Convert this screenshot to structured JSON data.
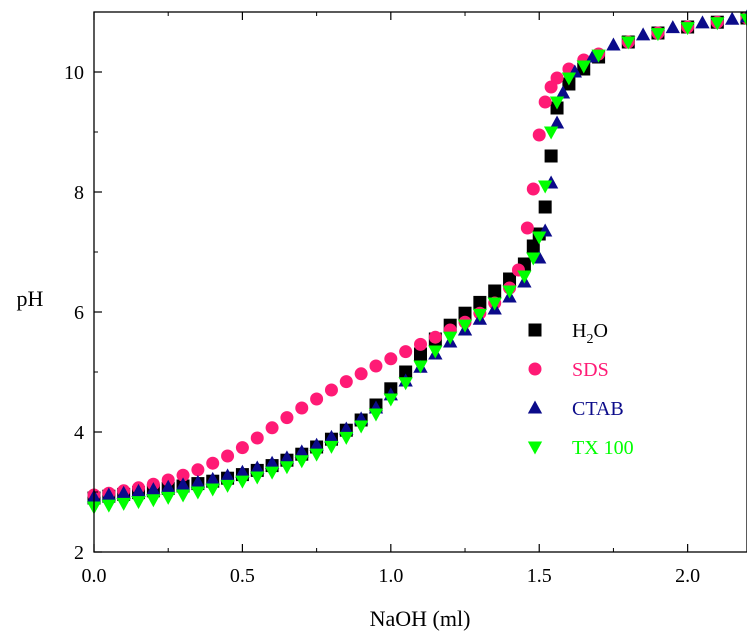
{
  "chart_data": {
    "type": "scatter",
    "xlabel": "NaOH (ml)",
    "ylabel": "pH",
    "xlim": [
      0,
      2.2
    ],
    "ylim": [
      2,
      11
    ],
    "xticks": [
      0.0,
      0.5,
      1.0,
      1.5,
      2.0
    ],
    "xtick_labels": [
      "0.0",
      "0.5",
      "1.0",
      "1.5",
      "2.0"
    ],
    "yticks": [
      2,
      4,
      6,
      8,
      10
    ],
    "ytick_labels": [
      "2",
      "4",
      "6",
      "8",
      "10"
    ],
    "grid": false,
    "legend_position": "right",
    "series": [
      {
        "name": "H2O",
        "label_main": "H",
        "label_sub": "2",
        "label_tail": "O",
        "marker": "square",
        "color": "#000000",
        "x": [
          0.0,
          0.05,
          0.1,
          0.15,
          0.2,
          0.25,
          0.3,
          0.35,
          0.4,
          0.45,
          0.5,
          0.55,
          0.6,
          0.65,
          0.7,
          0.75,
          0.8,
          0.85,
          0.9,
          0.95,
          1.0,
          1.05,
          1.1,
          1.15,
          1.2,
          1.25,
          1.3,
          1.35,
          1.4,
          1.45,
          1.48,
          1.5,
          1.52,
          1.54,
          1.56,
          1.6,
          1.65,
          1.7,
          1.8,
          1.9,
          2.0,
          2.1,
          2.2
        ],
        "y": [
          2.9,
          2.93,
          2.96,
          2.99,
          3.02,
          3.06,
          3.1,
          3.14,
          3.18,
          3.23,
          3.29,
          3.36,
          3.44,
          3.53,
          3.63,
          3.75,
          3.88,
          4.03,
          4.2,
          4.45,
          4.72,
          5.0,
          5.3,
          5.55,
          5.78,
          5.98,
          6.16,
          6.35,
          6.55,
          6.8,
          7.1,
          7.3,
          7.75,
          8.6,
          9.4,
          9.8,
          10.05,
          10.25,
          10.5,
          10.65,
          10.75,
          10.83,
          10.9
        ]
      },
      {
        "name": "SDS",
        "marker": "circle",
        "color": "#ff1a75",
        "x": [
          0.0,
          0.05,
          0.1,
          0.15,
          0.2,
          0.25,
          0.3,
          0.35,
          0.4,
          0.45,
          0.5,
          0.55,
          0.6,
          0.65,
          0.7,
          0.75,
          0.8,
          0.85,
          0.9,
          0.95,
          1.0,
          1.05,
          1.1,
          1.15,
          1.2,
          1.25,
          1.3,
          1.35,
          1.4,
          1.43,
          1.46,
          1.48,
          1.5,
          1.52,
          1.54,
          1.56,
          1.6,
          1.65,
          1.7,
          1.8,
          1.9,
          2.0,
          2.1,
          2.2
        ],
        "y": [
          2.95,
          2.98,
          3.02,
          3.07,
          3.13,
          3.2,
          3.28,
          3.37,
          3.48,
          3.6,
          3.74,
          3.9,
          4.07,
          4.24,
          4.4,
          4.55,
          4.7,
          4.84,
          4.97,
          5.1,
          5.22,
          5.34,
          5.46,
          5.58,
          5.7,
          5.83,
          5.98,
          6.15,
          6.4,
          6.7,
          7.4,
          8.05,
          8.95,
          9.5,
          9.75,
          9.9,
          10.05,
          10.2,
          10.3,
          10.5,
          10.65,
          10.75,
          10.83,
          10.9
        ]
      },
      {
        "name": "CTAB",
        "marker": "triangle-up",
        "color": "#0b0b8a",
        "x": [
          0.0,
          0.05,
          0.1,
          0.15,
          0.2,
          0.25,
          0.3,
          0.35,
          0.4,
          0.45,
          0.5,
          0.55,
          0.6,
          0.65,
          0.7,
          0.75,
          0.8,
          0.85,
          0.9,
          0.95,
          1.0,
          1.05,
          1.1,
          1.15,
          1.2,
          1.25,
          1.3,
          1.35,
          1.4,
          1.45,
          1.5,
          1.52,
          1.54,
          1.56,
          1.58,
          1.62,
          1.68,
          1.75,
          1.85,
          1.95,
          2.05,
          2.15,
          2.2
        ],
        "y": [
          2.92,
          2.95,
          2.98,
          3.01,
          3.04,
          3.08,
          3.12,
          3.16,
          3.21,
          3.27,
          3.33,
          3.4,
          3.48,
          3.57,
          3.67,
          3.78,
          3.91,
          4.05,
          4.22,
          4.4,
          4.62,
          4.85,
          5.08,
          5.3,
          5.5,
          5.7,
          5.88,
          6.05,
          6.25,
          6.5,
          6.9,
          7.35,
          8.15,
          9.15,
          9.65,
          10.0,
          10.25,
          10.45,
          10.62,
          10.74,
          10.82,
          10.88,
          10.92
        ]
      },
      {
        "name": "TX 100",
        "marker": "triangle-down",
        "color": "#00ff00",
        "x": [
          0.0,
          0.05,
          0.1,
          0.15,
          0.2,
          0.25,
          0.3,
          0.35,
          0.4,
          0.45,
          0.5,
          0.55,
          0.6,
          0.65,
          0.7,
          0.75,
          0.8,
          0.85,
          0.9,
          0.95,
          1.0,
          1.05,
          1.1,
          1.15,
          1.2,
          1.25,
          1.3,
          1.35,
          1.4,
          1.45,
          1.48,
          1.5,
          1.52,
          1.54,
          1.56,
          1.6,
          1.65,
          1.7,
          1.8,
          1.9,
          2.0,
          2.1,
          2.2
        ],
        "y": [
          2.75,
          2.78,
          2.81,
          2.84,
          2.87,
          2.91,
          2.95,
          3.0,
          3.05,
          3.11,
          3.18,
          3.25,
          3.33,
          3.42,
          3.52,
          3.63,
          3.76,
          3.91,
          4.1,
          4.3,
          4.55,
          4.82,
          5.1,
          5.35,
          5.58,
          5.78,
          5.96,
          6.15,
          6.35,
          6.6,
          6.9,
          7.25,
          8.1,
          9.0,
          9.5,
          9.9,
          10.1,
          10.28,
          10.5,
          10.64,
          10.74,
          10.82,
          10.88
        ]
      }
    ]
  }
}
